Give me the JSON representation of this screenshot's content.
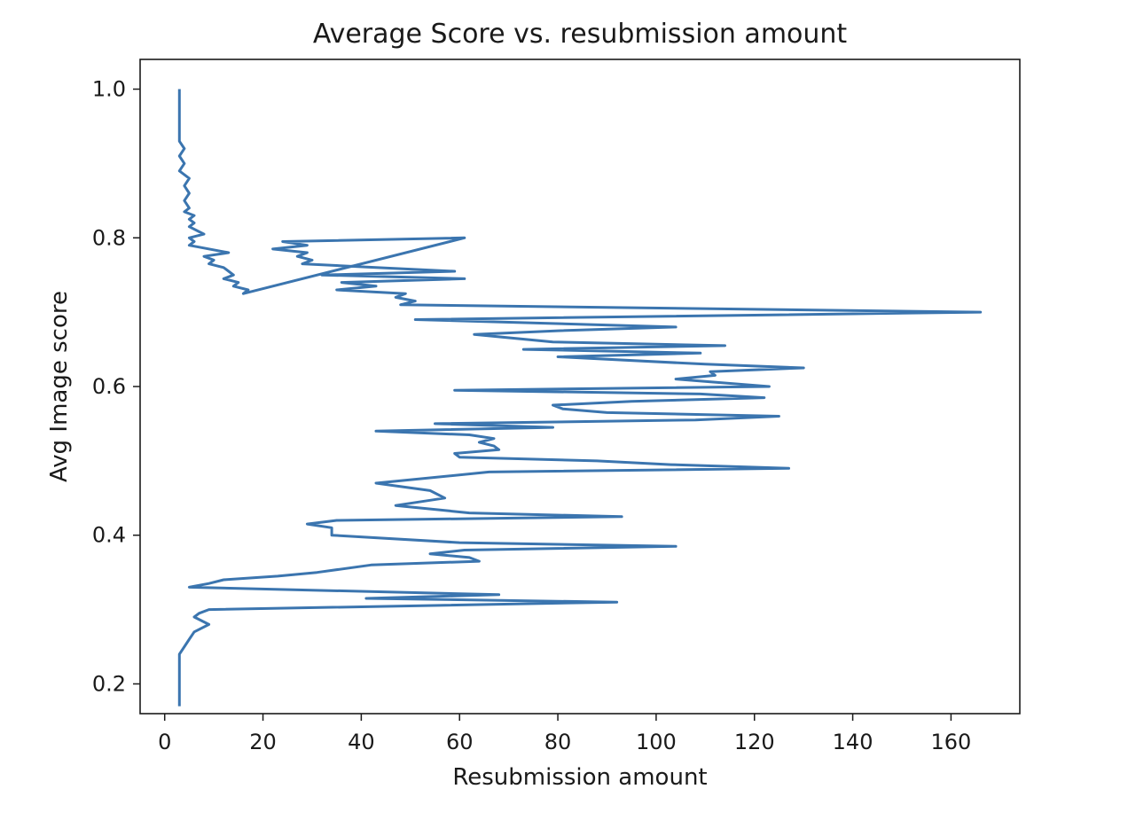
{
  "chart_data": {
    "type": "line",
    "orientation": "horizontal",
    "title": "Average Score vs. resubmission amount",
    "xlabel": "Resubmission amount",
    "ylabel": "Avg Image score",
    "xlim": [
      -5,
      174
    ],
    "ylim": [
      0.16,
      1.04
    ],
    "xticks": [
      0,
      20,
      40,
      60,
      80,
      100,
      120,
      140,
      160
    ],
    "yticks": [
      0.2,
      0.4,
      0.6,
      0.8,
      1.0
    ],
    "ytick_labels": [
      "0.2",
      "0.4",
      "0.6",
      "0.8",
      "1.0"
    ],
    "grid": false,
    "color": "#3b75af",
    "series": [
      {
        "x": [
          3,
          3,
          4,
          3,
          4,
          3,
          5,
          4,
          5,
          4,
          5,
          4,
          6,
          5,
          6,
          5,
          8,
          5,
          6,
          5,
          13,
          8,
          10,
          9,
          12,
          13,
          14,
          12,
          15,
          14,
          17,
          16,
          61,
          24,
          29,
          22,
          29,
          27,
          30,
          28,
          43,
          59,
          32,
          61,
          36,
          43,
          35,
          49,
          47,
          51,
          48,
          166,
          51,
          104,
          80,
          63,
          79,
          114,
          73,
          109,
          80,
          110,
          130,
          111,
          112,
          104,
          123,
          59,
          109,
          122,
          95,
          79,
          81,
          90,
          125,
          108,
          55,
          79,
          43,
          62,
          67,
          64,
          67,
          68,
          59,
          60,
          88,
          103,
          127,
          66,
          43,
          54,
          57,
          47,
          62,
          93,
          35,
          29,
          34,
          34,
          60,
          104,
          61,
          54,
          62,
          64,
          42,
          31,
          23,
          12,
          9,
          5,
          68,
          41,
          92,
          9,
          7,
          6,
          9,
          6,
          5,
          4,
          3,
          3,
          3
        ],
        "y": [
          1.0,
          0.93,
          0.92,
          0.91,
          0.9,
          0.89,
          0.88,
          0.87,
          0.86,
          0.85,
          0.84,
          0.835,
          0.83,
          0.825,
          0.82,
          0.815,
          0.805,
          0.8,
          0.795,
          0.79,
          0.78,
          0.775,
          0.77,
          0.765,
          0.76,
          0.755,
          0.75,
          0.745,
          0.74,
          0.735,
          0.73,
          0.725,
          0.8,
          0.795,
          0.79,
          0.785,
          0.78,
          0.775,
          0.77,
          0.765,
          0.76,
          0.755,
          0.75,
          0.745,
          0.74,
          0.735,
          0.73,
          0.725,
          0.72,
          0.715,
          0.71,
          0.7,
          0.69,
          0.68,
          0.675,
          0.67,
          0.66,
          0.655,
          0.65,
          0.645,
          0.64,
          0.63,
          0.625,
          0.62,
          0.615,
          0.61,
          0.6,
          0.595,
          0.59,
          0.585,
          0.58,
          0.575,
          0.57,
          0.565,
          0.56,
          0.555,
          0.55,
          0.545,
          0.54,
          0.535,
          0.53,
          0.525,
          0.52,
          0.515,
          0.51,
          0.505,
          0.5,
          0.495,
          0.49,
          0.485,
          0.47,
          0.46,
          0.45,
          0.44,
          0.43,
          0.425,
          0.42,
          0.415,
          0.41,
          0.4,
          0.39,
          0.385,
          0.38,
          0.375,
          0.37,
          0.365,
          0.36,
          0.35,
          0.345,
          0.34,
          0.335,
          0.33,
          0.32,
          0.315,
          0.31,
          0.3,
          0.295,
          0.29,
          0.28,
          0.27,
          0.26,
          0.25,
          0.24,
          0.23,
          0.17
        ]
      }
    ]
  }
}
